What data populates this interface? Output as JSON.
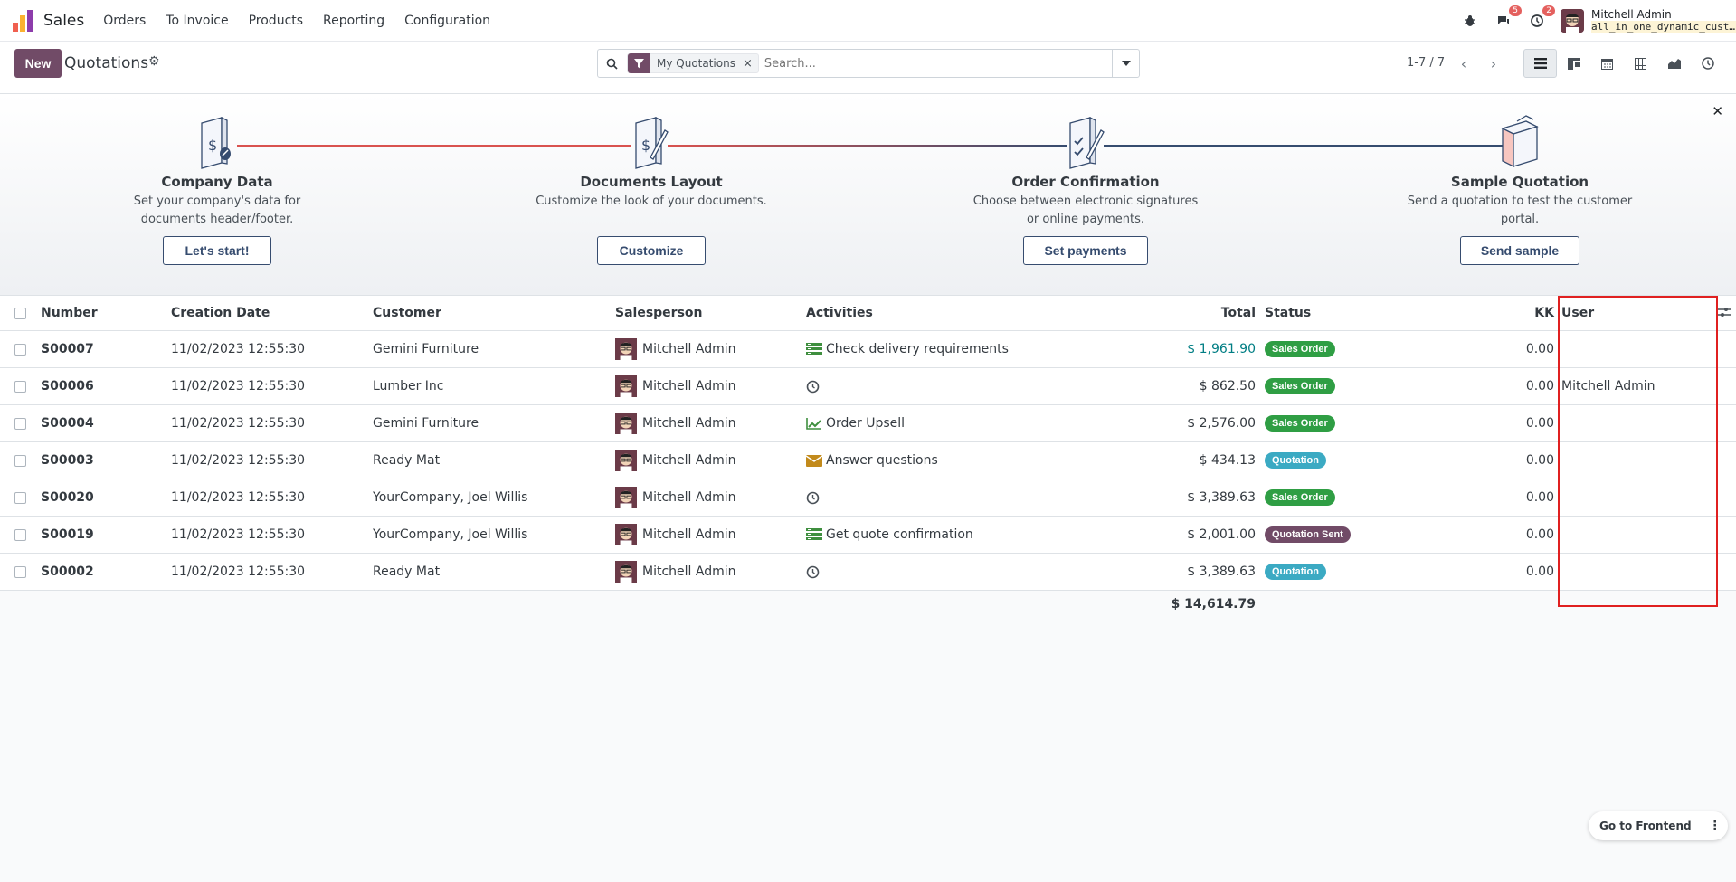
{
  "app": {
    "name": "Sales"
  },
  "menu": [
    "Orders",
    "To Invoice",
    "Products",
    "Reporting",
    "Configuration"
  ],
  "systray": {
    "messages_badge": "5",
    "activities_badge": "2"
  },
  "user": {
    "name": "Mitchell Admin",
    "db": "all_in_one_dynamic_custo…"
  },
  "control": {
    "new_label": "New",
    "title": "Quotations",
    "facet_label": "My Quotations",
    "search_placeholder": "Search...",
    "pager": "1-7 / 7"
  },
  "onboarding": {
    "steps": [
      {
        "title": "Company Data",
        "desc": "Set your company's data for documents header/footer.",
        "button": "Let's start!"
      },
      {
        "title": "Documents Layout",
        "desc": "Customize the look of your documents.",
        "button": "Customize"
      },
      {
        "title": "Order Confirmation",
        "desc": "Choose between electronic signatures or online payments.",
        "button": "Set payments"
      },
      {
        "title": "Sample Quotation",
        "desc": "Send a quotation to test the customer portal.",
        "button": "Send sample"
      }
    ],
    "line_colors": [
      "#d9534f",
      "#364c6f"
    ]
  },
  "table": {
    "headers": {
      "number": "Number",
      "date": "Creation Date",
      "customer": "Customer",
      "salesperson": "Salesperson",
      "activities": "Activities",
      "total": "Total",
      "status": "Status",
      "kk": "KK",
      "user": "User"
    },
    "rows": [
      {
        "number": "S00007",
        "date": "11/02/2023 12:55:30",
        "customer": "Gemini Furniture",
        "salesperson": "Mitchell Admin",
        "activity": "Check delivery requirements",
        "activity_icon": "tasks-icon",
        "total": "$ 1,961.90",
        "status": "Sales Order",
        "status_kind": "so",
        "kk": "0.00",
        "user": ""
      },
      {
        "number": "S00006",
        "date": "11/02/2023 12:55:30",
        "customer": "Lumber Inc",
        "salesperson": "Mitchell Admin",
        "activity": "",
        "activity_icon": "clock-icon",
        "total": "$ 862.50",
        "status": "Sales Order",
        "status_kind": "so",
        "kk": "0.00",
        "user": "Mitchell Admin"
      },
      {
        "number": "S00004",
        "date": "11/02/2023 12:55:30",
        "customer": "Gemini Furniture",
        "salesperson": "Mitchell Admin",
        "activity": "Order Upsell",
        "activity_icon": "chart-icon",
        "total": "$ 2,576.00",
        "status": "Sales Order",
        "status_kind": "so",
        "kk": "0.00",
        "user": ""
      },
      {
        "number": "S00003",
        "date": "11/02/2023 12:55:30",
        "customer": "Ready Mat",
        "salesperson": "Mitchell Admin",
        "activity": "Answer questions",
        "activity_icon": "envelope-icon",
        "total": "$ 434.13",
        "status": "Quotation",
        "status_kind": "q",
        "kk": "0.00",
        "user": ""
      },
      {
        "number": "S00020",
        "date": "11/02/2023 12:55:30",
        "customer": "YourCompany, Joel Willis",
        "salesperson": "Mitchell Admin",
        "activity": "",
        "activity_icon": "clock-icon",
        "total": "$ 3,389.63",
        "status": "Sales Order",
        "status_kind": "so",
        "kk": "0.00",
        "user": ""
      },
      {
        "number": "S00019",
        "date": "11/02/2023 12:55:30",
        "customer": "YourCompany, Joel Willis",
        "salesperson": "Mitchell Admin",
        "activity": "Get quote confirmation",
        "activity_icon": "tasks-icon",
        "total": "$ 2,001.00",
        "status": "Quotation Sent",
        "status_kind": "qs",
        "kk": "0.00",
        "user": ""
      },
      {
        "number": "S00002",
        "date": "11/02/2023 12:55:30",
        "customer": "Ready Mat",
        "salesperson": "Mitchell Admin",
        "activity": "",
        "activity_icon": "clock-icon",
        "total": "$ 3,389.63",
        "status": "Quotation",
        "status_kind": "q",
        "kk": "0.00",
        "user": ""
      }
    ],
    "sum_total": "$ 14,614.79"
  },
  "footer": {
    "go_frontend": "Go to Frontend"
  },
  "colors": {
    "brand": "#714b67",
    "link": "#017e84",
    "highlight": "#e02020"
  }
}
